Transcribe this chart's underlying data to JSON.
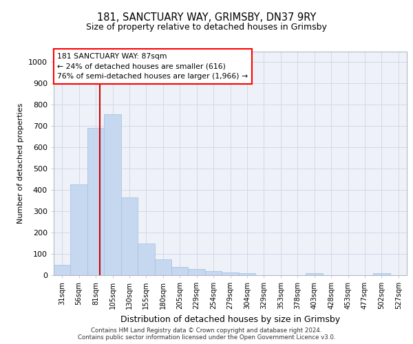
{
  "title_line1": "181, SANCTUARY WAY, GRIMSBY, DN37 9RY",
  "title_line2": "Size of property relative to detached houses in Grimsby",
  "xlabel": "Distribution of detached houses by size in Grimsby",
  "ylabel": "Number of detached properties",
  "footer_line1": "Contains HM Land Registry data © Crown copyright and database right 2024.",
  "footer_line2": "Contains public sector information licensed under the Open Government Licence v3.0.",
  "categories": [
    "31sqm",
    "56sqm",
    "81sqm",
    "105sqm",
    "130sqm",
    "155sqm",
    "180sqm",
    "205sqm",
    "229sqm",
    "254sqm",
    "279sqm",
    "304sqm",
    "329sqm",
    "353sqm",
    "378sqm",
    "403sqm",
    "428sqm",
    "453sqm",
    "477sqm",
    "502sqm",
    "527sqm"
  ],
  "values": [
    50,
    425,
    690,
    755,
    365,
    150,
    75,
    40,
    30,
    18,
    13,
    10,
    0,
    0,
    0,
    10,
    0,
    0,
    0,
    10,
    0
  ],
  "bar_color": "#c5d8f0",
  "bar_edge_color": "#a8c4e0",
  "ylim": [
    0,
    1050
  ],
  "yticks": [
    0,
    100,
    200,
    300,
    400,
    500,
    600,
    700,
    800,
    900,
    1000
  ],
  "annotation_text_line1": "181 SANCTUARY WAY: 87sqm",
  "annotation_text_line2": "← 24% of detached houses are smaller (616)",
  "annotation_text_line3": "76% of semi-detached houses are larger (1,966) →",
  "grid_color": "#d0d8ea",
  "background_color": "#eef2f8",
  "vline_color": "#cc0000",
  "vline_x": 2.24
}
